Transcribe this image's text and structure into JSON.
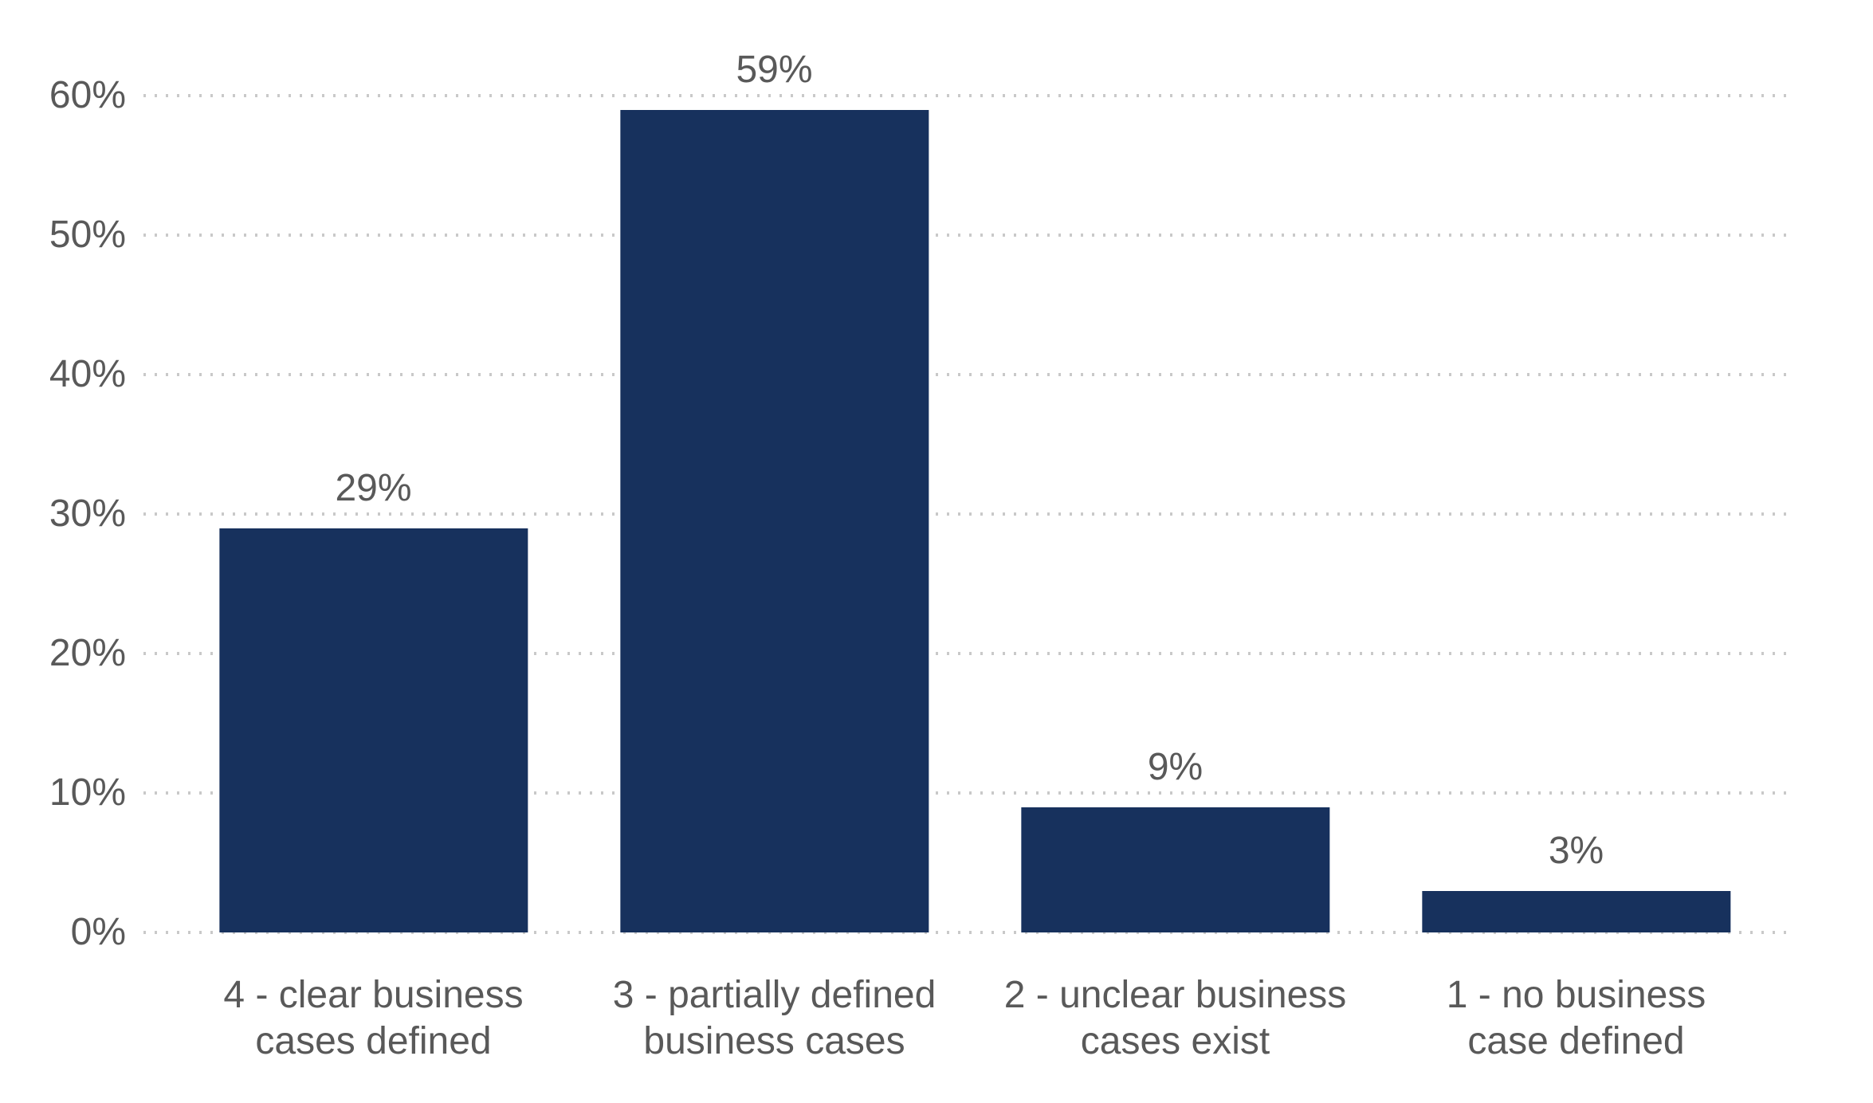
{
  "chart_data": {
    "type": "bar",
    "title": "",
    "xlabel": "",
    "ylabel": "",
    "categories": [
      "4 - clear business cases defined",
      "3 - partially defined business cases",
      "2 - unclear business cases exist",
      "1 - no business case defined"
    ],
    "category_lines": [
      [
        "4 - clear business",
        "cases defined"
      ],
      [
        "3 - partially defined",
        "business cases"
      ],
      [
        "2 - unclear business",
        "cases exist"
      ],
      [
        "1 - no business",
        "case defined"
      ]
    ],
    "values": [
      29,
      59,
      9,
      3
    ],
    "value_labels": [
      "29%",
      "59%",
      "9%",
      "3%"
    ],
    "ylim": [
      0,
      60
    ],
    "yticks": [
      0,
      10,
      20,
      30,
      40,
      50,
      60
    ],
    "ytick_labels": [
      "0%",
      "10%",
      "20%",
      "30%",
      "40%",
      "50%",
      "60%"
    ],
    "grid": "horizontal dotted lines at each 10% tick",
    "legend": "none",
    "colors": {
      "bar": "#17315d",
      "text": "#595959",
      "gridline": "#c9c9c9",
      "background": "#ffffff"
    }
  }
}
